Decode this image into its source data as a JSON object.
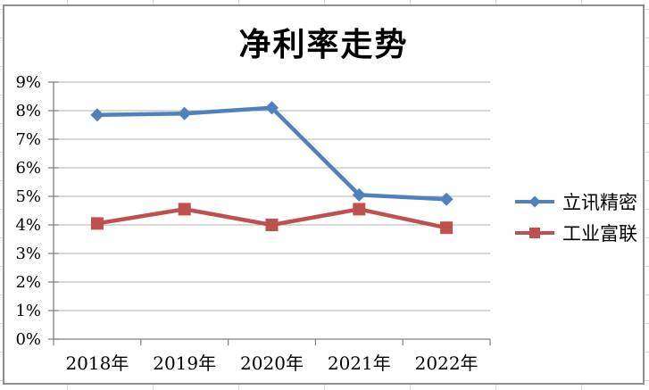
{
  "chart_data": {
    "type": "line",
    "title": "净利率走势",
    "categories": [
      "2018年",
      "2019年",
      "2020年",
      "2021年",
      "2022年"
    ],
    "series": [
      {
        "name": "立讯精密",
        "marker": "diamond",
        "color": "#4F81BD",
        "values": [
          7.85,
          7.9,
          8.1,
          5.05,
          4.9
        ]
      },
      {
        "name": "工业富联",
        "marker": "square",
        "color": "#C0504D",
        "values": [
          4.05,
          4.55,
          4.0,
          4.55,
          3.9
        ]
      }
    ],
    "ylim": [
      0,
      9
    ],
    "ytick_labels": [
      "0%",
      "1%",
      "2%",
      "3%",
      "4%",
      "5%",
      "6%",
      "7%",
      "8%",
      "9%"
    ],
    "grid": true,
    "legend_position": "middle-right",
    "xlabel": "",
    "ylabel": ""
  }
}
